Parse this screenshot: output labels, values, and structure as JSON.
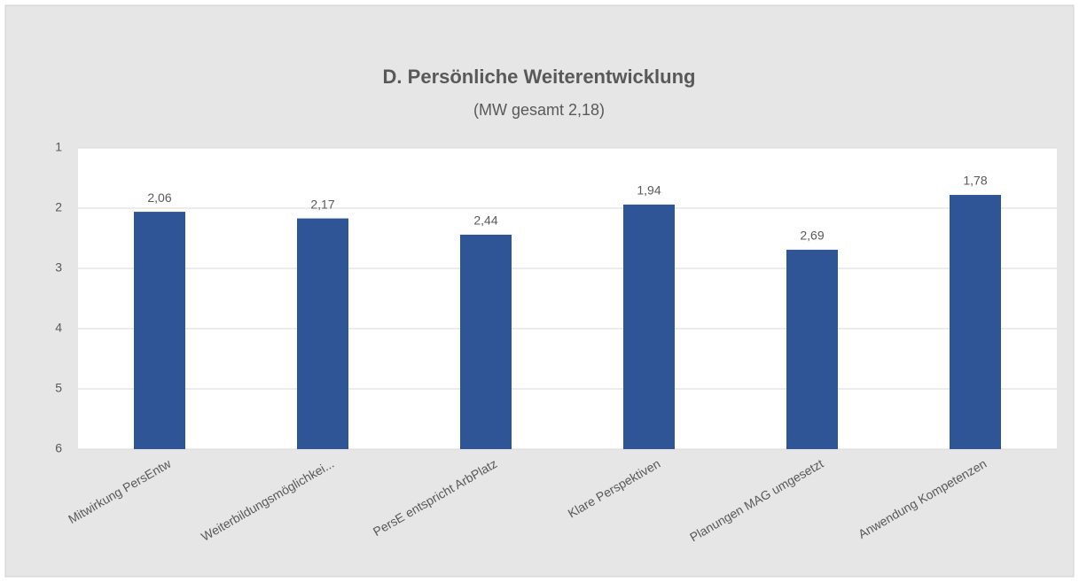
{
  "chart_data": {
    "type": "bar",
    "title": "D. Persönliche Weiterentwicklung",
    "subtitle": "(MW gesamt 2,18)",
    "categories": [
      "Mitwirkung PersEntw",
      "Weiterbildungsmöglichkei...",
      "PersE entspricht ArbPlatz",
      "Klare Perspektiven",
      "Planungen MAG umgesetzt",
      "Anwendung Kompetenzen"
    ],
    "values": [
      2.06,
      2.17,
      2.44,
      1.94,
      2.69,
      1.78
    ],
    "value_labels": [
      "2,06",
      "2,17",
      "2,44",
      "1,94",
      "2,69",
      "1,78"
    ],
    "color": "#2f5597",
    "ylim": [
      1,
      6
    ],
    "y_inverted": true,
    "yticks": [
      1,
      2,
      3,
      4,
      5,
      6
    ],
    "grid": true
  }
}
